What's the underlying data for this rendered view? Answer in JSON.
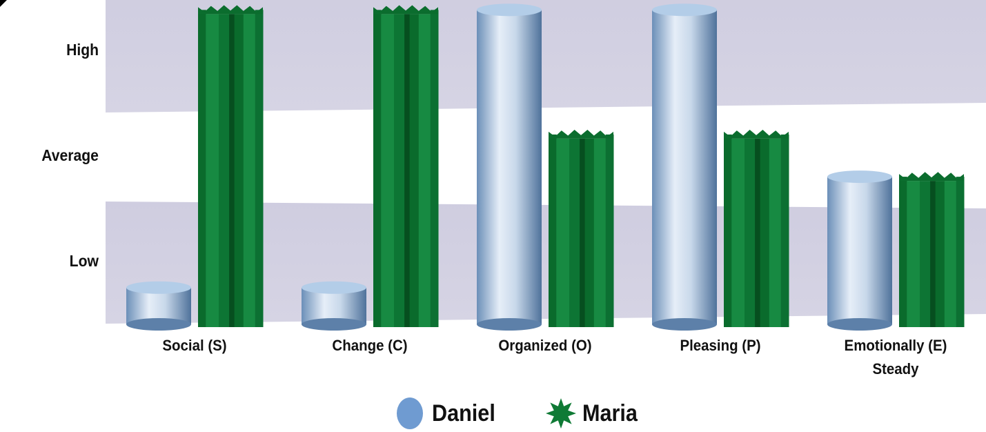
{
  "chart_data": {
    "type": "bar",
    "categories": [
      [
        "Social (S)"
      ],
      [
        "Change (C)"
      ],
      [
        "Organized (O)"
      ],
      [
        "Pleasing (P)"
      ],
      [
        "Emotionally (E)",
        "Steady"
      ]
    ],
    "y_levels": [
      "Low",
      "Average",
      "High"
    ],
    "ylim": [
      0,
      3
    ],
    "series": [
      {
        "name": "Daniel",
        "values": [
          0.25,
          0.25,
          2.88,
          2.88,
          1.3
        ],
        "color": "#7a9ec4",
        "shape": "cylinder"
      },
      {
        "name": "Maria",
        "values": [
          2.88,
          2.88,
          1.7,
          1.7,
          1.3
        ],
        "color": "#0f7a35",
        "shape": "star-prism"
      }
    ],
    "grid": "bands",
    "legend_position": "bottom"
  }
}
